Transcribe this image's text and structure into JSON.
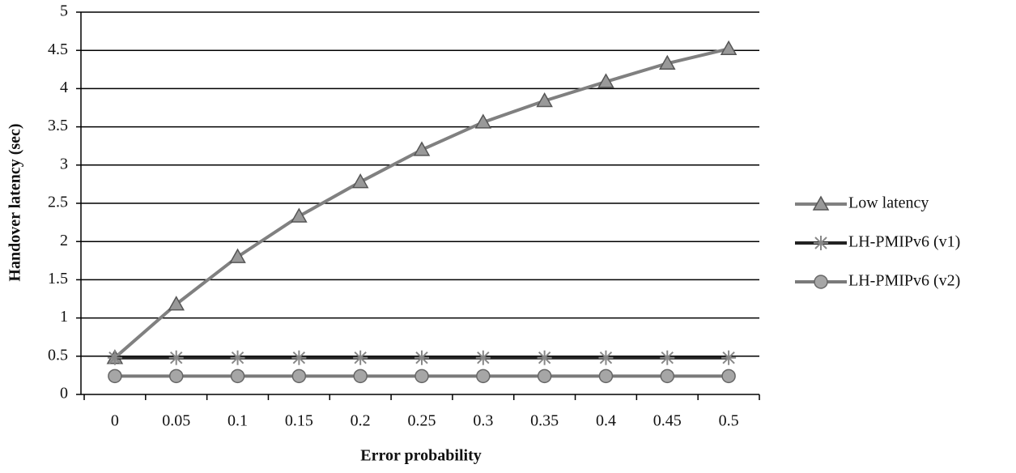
{
  "chart_data": {
    "type": "line",
    "x_label": "Error probability",
    "y_label": "Handover latency (sec)",
    "categories": [
      "0",
      "0.05",
      "0.1",
      "0.15",
      "0.2",
      "0.25",
      "0.3",
      "0.35",
      "0.4",
      "0.45",
      "0.5"
    ],
    "ylim": [
      0,
      5
    ],
    "yticks": [
      0,
      0.5,
      1,
      1.5,
      2,
      2.5,
      3,
      3.5,
      4,
      4.5,
      5
    ],
    "grid": true,
    "legend": "right",
    "series": [
      {
        "name": "Low latency",
        "color": "#808080",
        "marker": "triangle",
        "values": [
          0.48,
          1.18,
          1.8,
          2.33,
          2.78,
          3.2,
          3.56,
          3.84,
          4.09,
          4.33,
          4.52
        ]
      },
      {
        "name": "LH-PMIPv6 (v1)",
        "color": "#222222",
        "marker": "star",
        "values": [
          0.48,
          0.48,
          0.48,
          0.48,
          0.48,
          0.48,
          0.48,
          0.48,
          0.48,
          0.48,
          0.48
        ]
      },
      {
        "name": "LH-PMIPv6 (v2)",
        "color": "#7a7a7a",
        "marker": "circle",
        "values": [
          0.24,
          0.24,
          0.24,
          0.24,
          0.24,
          0.24,
          0.24,
          0.24,
          0.24,
          0.24,
          0.24
        ]
      }
    ]
  }
}
